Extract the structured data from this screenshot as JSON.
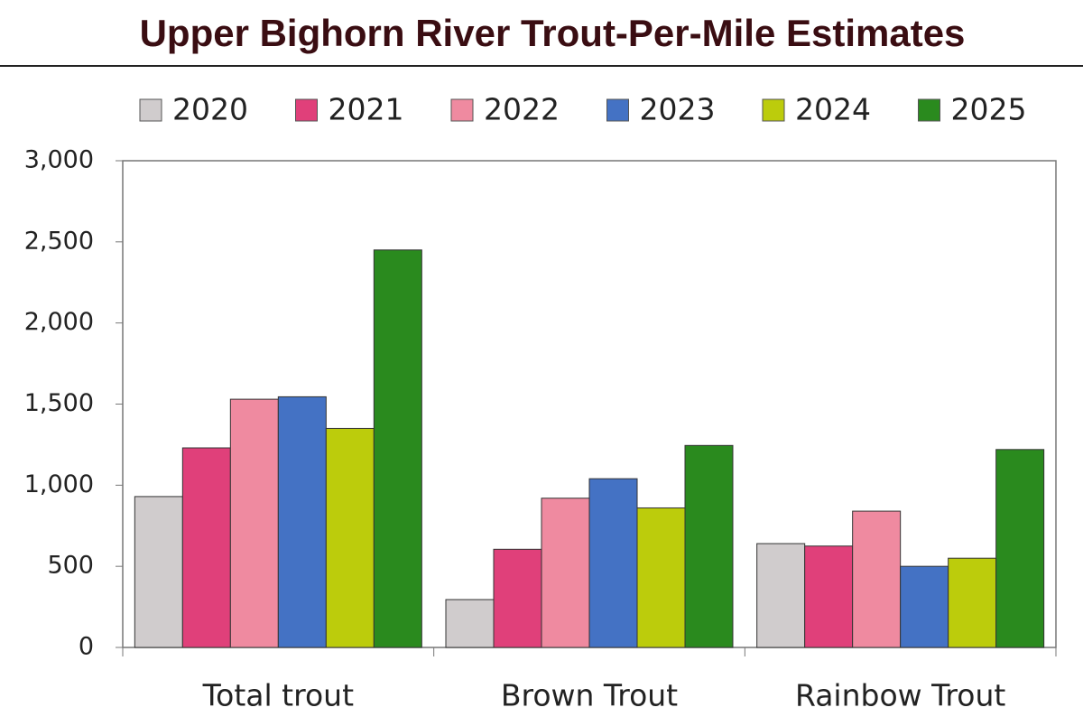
{
  "chart_data": {
    "type": "bar",
    "title": "Upper Bighorn River Trout-Per-Mile Estimates",
    "categories": [
      "Total trout",
      "Brown Trout",
      "Rainbow Trout"
    ],
    "series": [
      {
        "name": "2020",
        "color": "#d0cccd",
        "values": [
          930,
          295,
          640
        ]
      },
      {
        "name": "2021",
        "color": "#e0407a",
        "values": [
          1230,
          605,
          625
        ]
      },
      {
        "name": "2022",
        "color": "#ef8aa0",
        "values": [
          1530,
          920,
          840
        ]
      },
      {
        "name": "2023",
        "color": "#4472c4",
        "values": [
          1545,
          1040,
          500
        ]
      },
      {
        "name": "2024",
        "color": "#bccc0c",
        "values": [
          1350,
          860,
          550
        ]
      },
      {
        "name": "2025",
        "color": "#2a8a1e",
        "values": [
          2450,
          1245,
          1220
        ]
      }
    ],
    "ylim": [
      0,
      3000
    ],
    "yticks": [
      0,
      500,
      {
        "value": 1000,
        "label": "1,000"
      },
      {
        "value": 1500,
        "label": "1,500"
      },
      {
        "value": 2000,
        "label": "2,000"
      },
      {
        "value": 2500,
        "label": "2,500"
      },
      {
        "value": 3000,
        "label": "3,000"
      }
    ],
    "grid": false,
    "legend": "top"
  }
}
